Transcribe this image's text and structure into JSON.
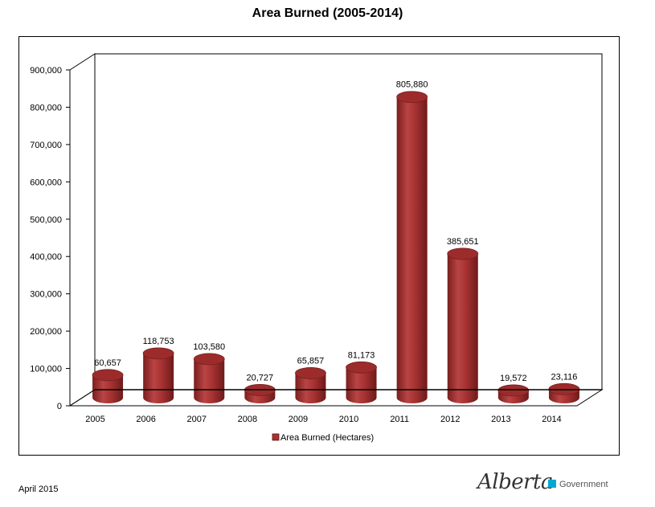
{
  "footer": {
    "date": "April 2015"
  },
  "logo": {
    "script_text": "Alberta",
    "suffix": "Government",
    "accent": "#00aad2"
  },
  "chart_data": {
    "type": "bar",
    "title": "Area Burned (2005-2014)",
    "categories": [
      "2005",
      "2006",
      "2007",
      "2008",
      "2009",
      "2010",
      "2011",
      "2012",
      "2013",
      "2014"
    ],
    "series": [
      {
        "name": "Area Burned (Hectares)",
        "values": [
          60657,
          118753,
          103580,
          20727,
          65857,
          81173,
          805880,
          385651,
          19572,
          23116
        ],
        "labels": [
          "60,657",
          "118,753",
          "103,580",
          "20,727",
          "65,857",
          "81,173",
          "805,880",
          "385,651",
          "19,572",
          "23,116"
        ],
        "color": "#a83232"
      }
    ],
    "ylim": [
      0,
      900000
    ],
    "yticks": [
      0,
      100000,
      200000,
      300000,
      400000,
      500000,
      600000,
      700000,
      800000,
      900000
    ],
    "ytick_labels": [
      "0",
      "100,000",
      "200,000",
      "300,000",
      "400,000",
      "500,000",
      "600,000",
      "700,000",
      "800,000",
      "900,000"
    ],
    "legend_position": "bottom-center",
    "style": "3d-cylinder"
  }
}
